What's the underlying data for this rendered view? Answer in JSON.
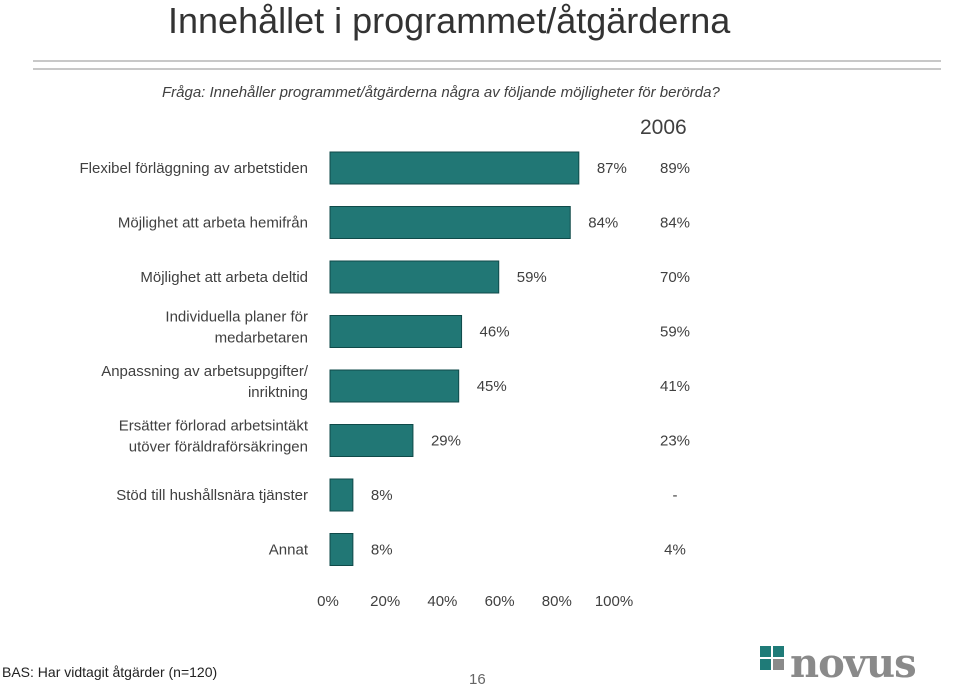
{
  "title": "Innehållet i programmet/åtgärderna",
  "question": "Fråga: Innehåller programmet/åtgärderna några av följande möjligheter för berörda?",
  "footer": {
    "base": "BAS: Har vidtagit åtgärder (n=120)",
    "page_number": "16",
    "logo_text": "novus"
  },
  "colors": {
    "bar": "#217775",
    "bar_edge": "#0f4a49",
    "logo_teal": "#1f7b78",
    "logo_gray": "#8a8a8a"
  },
  "chart_data": {
    "type": "bar",
    "orientation": "horizontal",
    "categories": [
      [
        "Flexibel förläggning av arbetstiden"
      ],
      [
        "Möjlighet att arbeta hemifrån"
      ],
      [
        "Möjlighet att arbeta deltid"
      ],
      [
        "Individuella planer för",
        "medarbetaren"
      ],
      [
        "Anpassning av arbetsuppgifter/",
        "inriktning"
      ],
      [
        "Ersätter förlorad arbetsintäkt",
        "utöver föräldraförsäkringen"
      ],
      [
        "Stöd till hushållsnära tjänster"
      ],
      [
        "Annat"
      ]
    ],
    "values": [
      87,
      84,
      59,
      46,
      45,
      29,
      8,
      8
    ],
    "value_labels": [
      "87%",
      "84%",
      "59%",
      "46%",
      "45%",
      "29%",
      "8%",
      "8%"
    ],
    "comparison": {
      "label": "2006",
      "values": [
        "89%",
        "84%",
        "70%",
        "59%",
        "41%",
        "23%",
        "-",
        "4%"
      ]
    },
    "xlim": [
      0,
      100
    ],
    "x_ticks": [
      "0%",
      "20%",
      "40%",
      "60%",
      "80%",
      "100%"
    ],
    "grid": false,
    "legend": "none"
  }
}
